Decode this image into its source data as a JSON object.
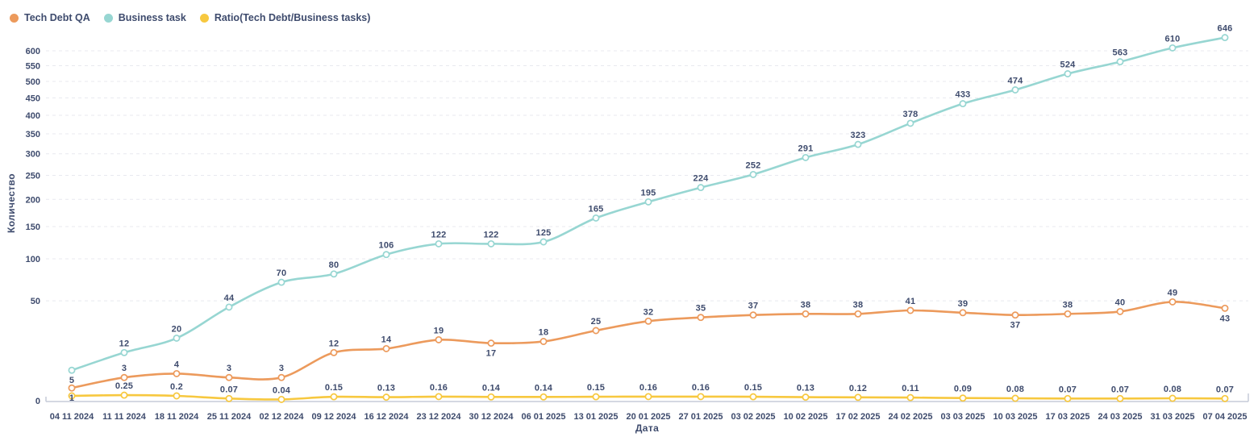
{
  "colors": {
    "background": "#ffffff",
    "text": "#3E4B6D",
    "grid": "#E8E9EF",
    "axis": "#C5CBD8"
  },
  "chart_data": {
    "type": "line",
    "title": "",
    "xlabel": "Дата",
    "ylabel": "Количество",
    "x_type": "category",
    "y_scale": "sqrt",
    "ylim": [
      0,
      646
    ],
    "yticks": [
      0,
      50,
      100,
      150,
      200,
      250,
      300,
      350,
      400,
      450,
      500,
      550,
      600
    ],
    "grid": "horizontal-dashed",
    "legend_position": "top-left",
    "categories": [
      "04 11 2024",
      "11 11 2024",
      "18 11 2024",
      "25 11 2024",
      "02 12 2024",
      "09 12 2024",
      "16 12 2024",
      "23 12 2024",
      "30 12 2024",
      "06 01 2025",
      "13 01 2025",
      "20 01 2025",
      "27 01 2025",
      "03 02 2025",
      "10 02 2025",
      "17 02 2025",
      "24 02 2025",
      "03 03 2025",
      "10 03 2025",
      "17 03 2025",
      "24 03 2025",
      "31 03 2025",
      "07 04 2025"
    ],
    "series": [
      {
        "name": "Tech Debt QA",
        "color": "#EC9A5C",
        "values": [
          1,
          3,
          4,
          3,
          3,
          12,
          14,
          19,
          17,
          18,
          25,
          32,
          35,
          37,
          38,
          38,
          41,
          39,
          37,
          38,
          40,
          49,
          43
        ],
        "point_labels": [
          "1",
          "3",
          "4",
          "3",
          "3",
          "12",
          "14",
          "19",
          "17",
          "18",
          "25",
          "32",
          "35",
          "37",
          "38",
          "38",
          "41",
          "39",
          "37",
          "38",
          "40",
          "49",
          "43"
        ],
        "labels_below_indices": [
          0,
          8,
          18,
          22
        ]
      },
      {
        "name": "Business task",
        "color": "#97D6D2",
        "values": [
          5,
          12,
          20,
          44,
          70,
          80,
          106,
          122,
          122,
          125,
          165,
          195,
          224,
          252,
          291,
          323,
          378,
          433,
          474,
          524,
          563,
          610,
          646
        ],
        "point_labels": [
          "5",
          "12",
          "20",
          "44",
          "70",
          "80",
          "106",
          "122",
          "122",
          "125",
          "165",
          "195",
          "224",
          "252",
          "291",
          "323",
          "378",
          "433",
          "474",
          "524",
          "563",
          "610",
          "646"
        ],
        "labels_below_indices": [
          0
        ]
      },
      {
        "name": "Ratio(Tech Debt/Business tasks)",
        "color": "#F7C83F",
        "values": [
          0.2,
          0.25,
          0.2,
          0.07,
          0.04,
          0.15,
          0.13,
          0.16,
          0.14,
          0.14,
          0.15,
          0.16,
          0.16,
          0.15,
          0.13,
          0.12,
          0.11,
          0.09,
          0.08,
          0.07,
          0.07,
          0.08,
          0.07
        ],
        "point_labels": [
          "",
          "0.25",
          "0.2",
          "0.07",
          "0.04",
          "0.15",
          "0.13",
          "0.16",
          "0.14",
          "0.14",
          "0.15",
          "0.16",
          "0.16",
          "0.15",
          "0.13",
          "0.12",
          "0.11",
          "0.09",
          "0.08",
          "0.07",
          "0.07",
          "0.08",
          "0.07"
        ],
        "labels_below_indices": []
      }
    ]
  }
}
